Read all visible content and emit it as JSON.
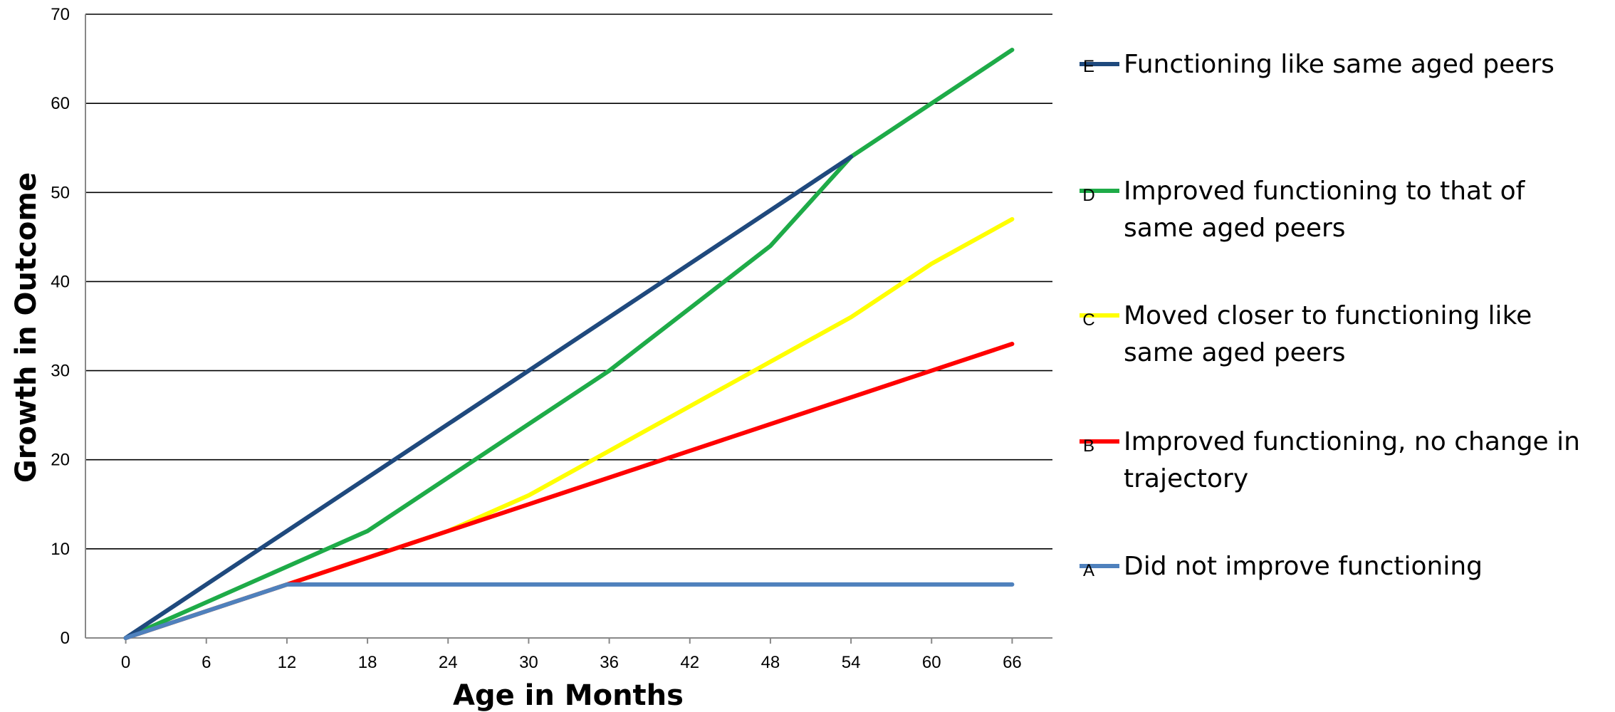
{
  "chart_data": {
    "type": "line",
    "title": "",
    "xlabel": "Age in Months",
    "ylabel": "Growth in Outcome",
    "x": [
      0,
      6,
      12,
      18,
      24,
      30,
      36,
      42,
      48,
      54,
      60,
      66
    ],
    "xlim": [
      -3,
      69
    ],
    "ylim": [
      0,
      70
    ],
    "yticks": [
      0,
      10,
      20,
      30,
      40,
      50,
      60,
      70
    ],
    "grid": true,
    "legend_position": "right",
    "series": [
      {
        "name": "Functioning like same aged peers",
        "marker_letter": "E",
        "color": "#1f497d",
        "values": [
          0,
          6,
          12,
          18,
          24,
          30,
          36,
          42,
          48,
          54,
          null,
          null
        ]
      },
      {
        "name": "Improved functioning to that of same aged peers",
        "marker_letter": "D",
        "color": "#1eab48",
        "values": [
          0,
          4,
          8,
          12,
          18,
          24,
          30,
          37,
          44,
          54,
          60,
          66
        ]
      },
      {
        "name": "Moved closer to functioning like same aged peers",
        "marker_letter": "C",
        "color": "#ffff00",
        "values": [
          0,
          3,
          6,
          9,
          12,
          16,
          21,
          26,
          31,
          36,
          42,
          47
        ]
      },
      {
        "name": "Improved functioning, no change in trajectory",
        "marker_letter": "B",
        "color": "#ff0000",
        "values": [
          0,
          3,
          6,
          9,
          12,
          15,
          18,
          21,
          24,
          27,
          30,
          33
        ]
      },
      {
        "name": "Did not improve functioning",
        "marker_letter": "A",
        "color": "#4f81bd",
        "values": [
          0,
          3,
          6,
          6,
          6,
          6,
          6,
          6,
          6,
          6,
          6,
          6
        ]
      }
    ]
  }
}
